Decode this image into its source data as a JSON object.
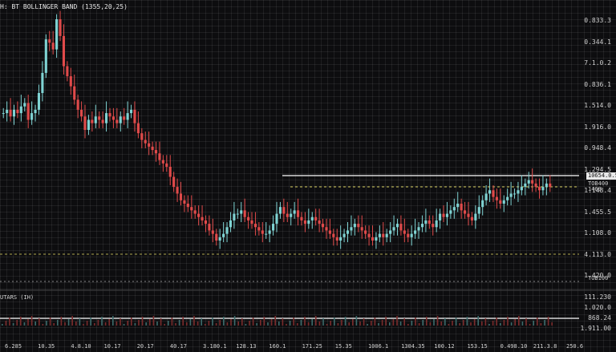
{
  "chart_title": "H: BT BOLLINGER BAND (1355,20,25)",
  "sub_panel_label": "UTARS (IH)",
  "price_axis_labels": [
    "0.833.3",
    "0.344.1",
    "7.1.0.2",
    "0.836.1",
    "1.514.0",
    "1.916.0",
    "0.948.4",
    "1.294.5",
    "1.148.4",
    "1.455.5",
    "1.108.0",
    "4.113.0",
    "1.420.0"
  ],
  "price_tags": {
    "level_upper": "10654.0.5",
    "level_upper_sub": "TOB400",
    "level_mid": "1460",
    "level_lower": "TOB100"
  },
  "sub_axis_labels": [
    "111.230",
    "1.020.0",
    "868.24",
    "1.911.00"
  ],
  "x_axis_labels": [
    "6.285",
    "10.35",
    "4.8.10",
    "10.17",
    "20.17",
    "40.17",
    "3.180.1",
    "128.13",
    "160.1",
    "171.25",
    "15.35",
    "1006.1",
    "1304.35",
    "100.12",
    "153.15",
    "0.498.10",
    "211.3.8",
    "250.6"
  ],
  "chart_data": {
    "type": "candlestick",
    "title": "H: BT BOLLINGER BAND (1355,20,25)",
    "close": [
      44,
      45,
      43,
      45,
      44,
      46,
      47,
      42,
      44,
      45,
      50,
      56,
      66,
      65,
      63,
      72,
      67,
      58,
      55,
      52,
      48,
      45,
      43,
      39,
      42,
      41,
      43,
      42,
      41,
      44,
      43,
      42,
      41,
      43,
      42,
      44,
      45,
      41,
      38,
      36,
      35,
      34,
      33,
      32,
      30,
      29,
      28,
      25,
      22,
      20,
      18,
      17,
      16,
      15,
      14,
      13,
      12,
      11,
      9,
      8,
      6,
      7,
      8,
      10,
      12,
      14,
      14,
      15,
      13,
      12,
      11,
      10,
      9,
      8,
      8,
      9,
      11,
      14,
      16,
      14,
      13,
      14,
      15,
      13,
      12,
      11,
      12,
      13,
      12,
      11,
      10,
      9,
      8,
      7,
      6,
      7,
      8,
      9,
      10,
      11,
      10,
      9,
      8,
      7,
      6,
      7,
      8,
      7,
      8,
      9,
      10,
      11,
      9,
      8,
      7,
      8,
      9,
      10,
      11,
      12,
      11,
      10,
      12,
      14,
      13,
      14,
      15,
      16,
      17,
      15,
      14,
      13,
      12,
      14,
      16,
      18,
      20,
      21,
      19,
      18,
      17,
      18,
      19,
      20,
      20,
      21,
      22,
      23,
      24,
      23,
      22,
      21,
      22,
      23,
      22
    ]
  },
  "colors": {
    "background": "#0d0d0f",
    "up_candle": "#7fd3d3",
    "down_candle": "#e04a4a",
    "level_line": "#ffffff",
    "dashed_line": "#d8d060"
  }
}
